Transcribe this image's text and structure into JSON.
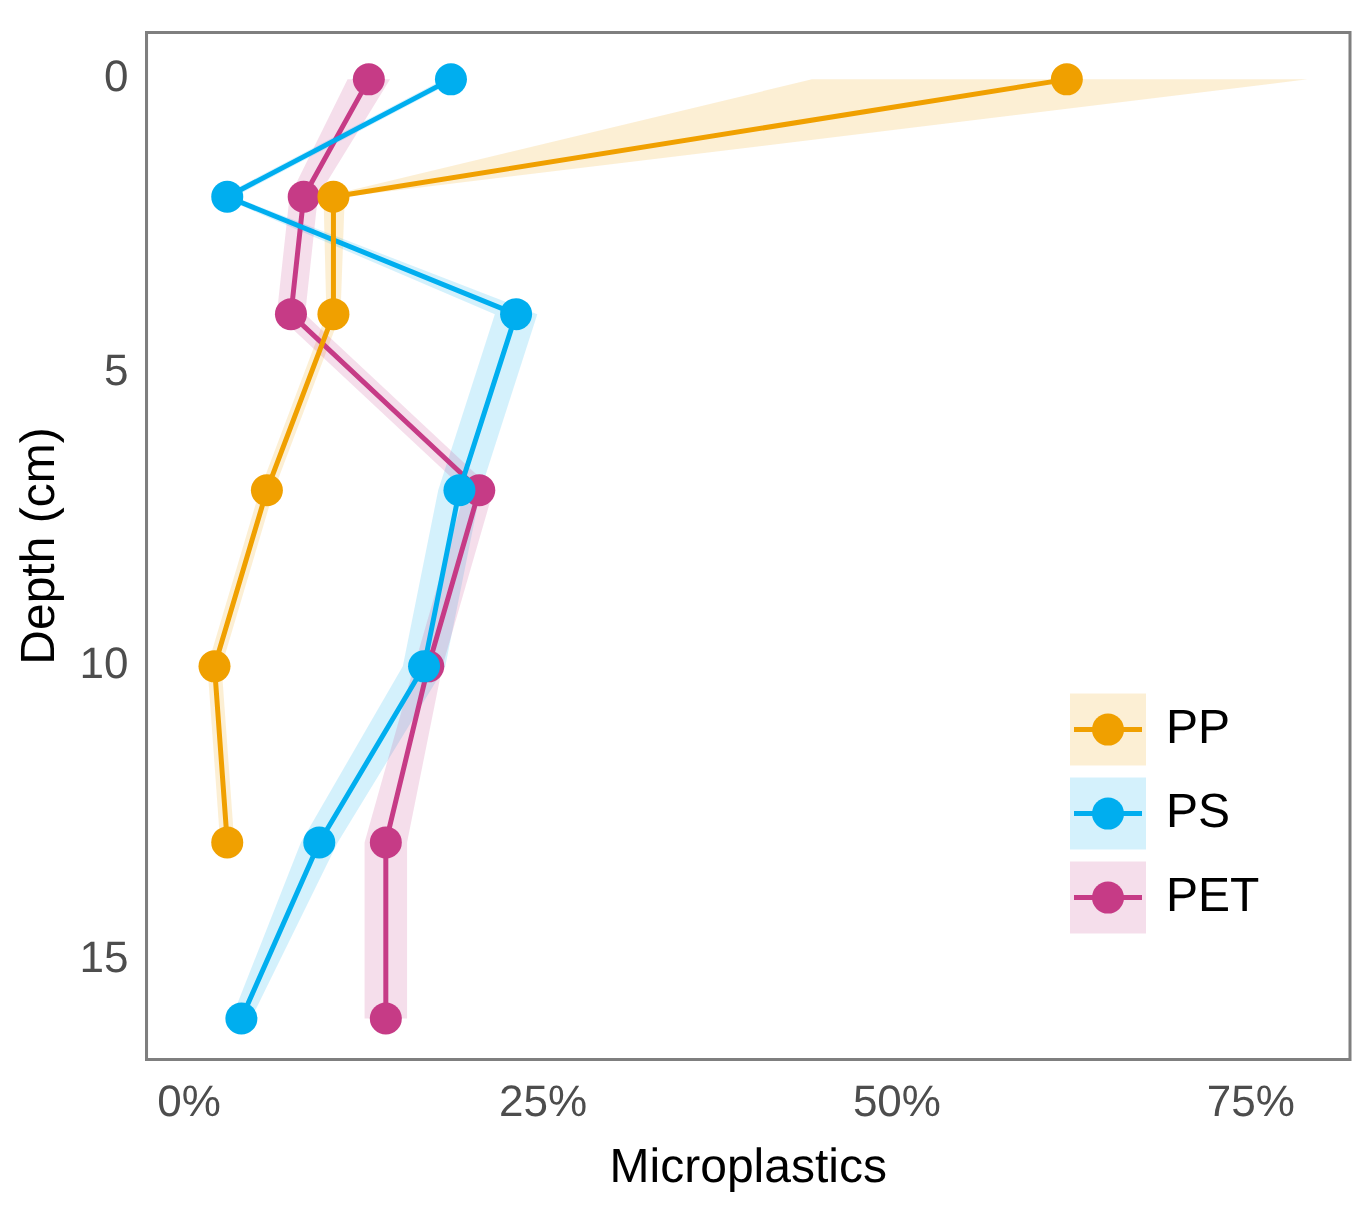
{
  "chart_data": {
    "type": "line",
    "orientation": "horizontal",
    "xlabel": "Microplastics",
    "ylabel": "Depth (cm)",
    "x": [
      0,
      2,
      4,
      7,
      10,
      13,
      16
    ],
    "series": [
      {
        "name": "PP",
        "color": "#f0a000",
        "values": [
          62,
          10.2,
          10.2,
          5.5,
          1.8,
          2.7,
          null
        ],
        "lower": [
          44,
          9.5,
          9.7,
          5,
          1.3,
          2.2,
          null
        ],
        "upper": [
          79,
          11,
          10.7,
          6,
          2.3,
          3.2,
          null
        ]
      },
      {
        "name": "PS",
        "color": "#00aeef",
        "values": [
          18.5,
          2.7,
          23.1,
          19.1,
          16.6,
          9.2,
          3.7
        ],
        "lower": [
          18,
          2.2,
          21.6,
          17.6,
          15.1,
          7.9,
          3
        ],
        "upper": [
          19,
          3.2,
          24.6,
          20.6,
          18.1,
          10.5,
          4.4
        ]
      },
      {
        "name": "PET",
        "color": "#c63b86",
        "values": [
          12.7,
          8.1,
          7.2,
          20.5,
          16.9,
          13.9,
          13.9
        ],
        "lower": [
          11.2,
          7.1,
          6.2,
          19.5,
          15.9,
          12.4,
          12.4
        ],
        "upper": [
          14.2,
          9.1,
          8.2,
          21.5,
          17.9,
          15.4,
          15.4
        ]
      }
    ],
    "xlim": [
      -3,
      82
    ],
    "xticks": [
      {
        "value": 0,
        "label": "0%"
      },
      {
        "value": 25,
        "label": "25%"
      },
      {
        "value": 50,
        "label": "50%"
      },
      {
        "value": 75,
        "label": "75%"
      }
    ],
    "ylim": [
      16.7,
      -0.8
    ],
    "yticks": [
      0,
      5,
      10,
      15
    ],
    "legend": "bottom right",
    "marker": "circle",
    "line_style": "solid",
    "grid": false
  }
}
